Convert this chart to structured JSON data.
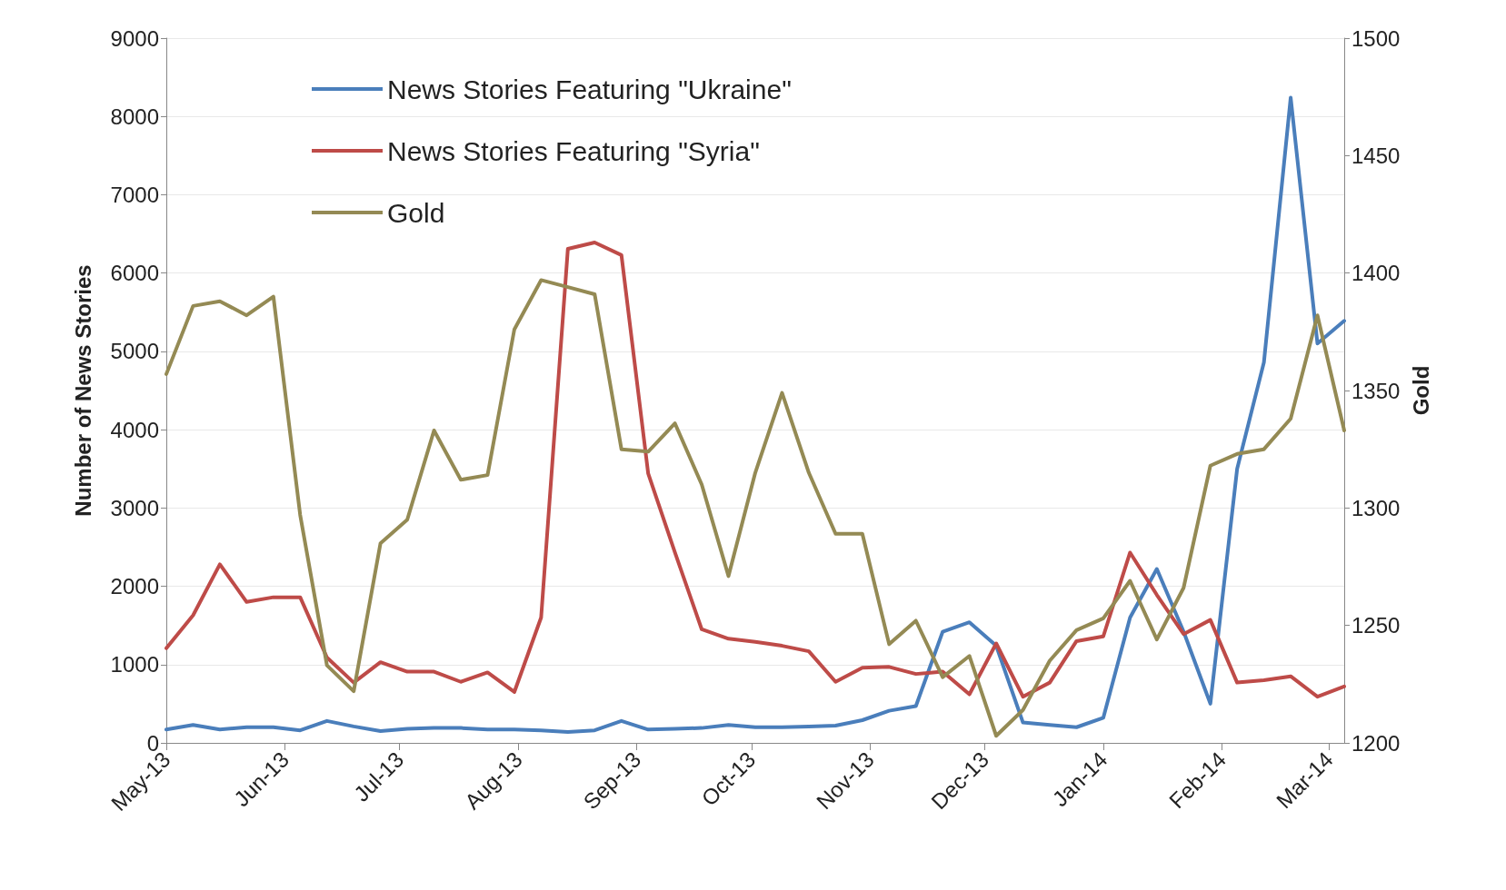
{
  "chart_data": {
    "type": "line",
    "x": [
      "2013-05-01",
      "2013-05-08",
      "2013-05-15",
      "2013-05-22",
      "2013-05-29",
      "2013-06-05",
      "2013-06-12",
      "2013-06-19",
      "2013-06-26",
      "2013-07-03",
      "2013-07-10",
      "2013-07-17",
      "2013-07-24",
      "2013-07-31",
      "2013-08-07",
      "2013-08-14",
      "2013-08-21",
      "2013-08-28",
      "2013-09-04",
      "2013-09-11",
      "2013-09-18",
      "2013-09-25",
      "2013-10-02",
      "2013-10-09",
      "2013-10-16",
      "2013-10-23",
      "2013-10-30",
      "2013-11-06",
      "2013-11-13",
      "2013-11-20",
      "2013-11-27",
      "2013-12-04",
      "2013-12-11",
      "2013-12-18",
      "2013-12-25",
      "2014-01-01",
      "2014-01-08",
      "2014-01-15",
      "2014-01-22",
      "2014-01-29",
      "2014-02-05",
      "2014-02-12",
      "2014-02-19",
      "2014-02-26",
      "2014-03-05"
    ],
    "series": [
      {
        "name": "News Stories Featuring \"Ukraine\"",
        "color": "#4a7ebb",
        "values": [
          170,
          230,
          170,
          200,
          200,
          160,
          280,
          210,
          150,
          180,
          190,
          190,
          170,
          170,
          160,
          140,
          160,
          280,
          170,
          180,
          190,
          230,
          200,
          200,
          210,
          220,
          290,
          410,
          470,
          1420,
          1540,
          1240,
          260,
          230,
          200,
          320,
          1600,
          2220,
          1420,
          500,
          3500,
          4860,
          8240,
          5100,
          5390
        ]
      },
      {
        "name": "News Stories Featuring \"Syria\"",
        "color": "#be4b48",
        "values": [
          1210,
          1630,
          2280,
          1800,
          1860,
          1860,
          1090,
          770,
          1030,
          910,
          910,
          780,
          900,
          650,
          1600,
          6310,
          6390,
          6230,
          3440,
          2430,
          1450,
          1330,
          1290,
          1240,
          1170,
          780,
          960,
          970,
          880,
          910,
          620,
          1270,
          590,
          770,
          1300,
          1360,
          2430,
          1890,
          1390,
          1570,
          770,
          800,
          850,
          590,
          720
        ]
      },
      {
        "name": "Gold",
        "color": "#948a54",
        "axis": "y2",
        "values": [
          1357,
          1386,
          1388,
          1382,
          1390,
          1297,
          1233,
          1222,
          1285,
          1295,
          1333,
          1312,
          1314,
          1376,
          1397,
          1394,
          1391,
          1325,
          1324,
          1336,
          1310,
          1271,
          1315,
          1349,
          1315,
          1289,
          1289,
          1242,
          1252,
          1228,
          1237,
          1203,
          1214,
          1235,
          1248,
          1253,
          1269,
          1244,
          1266,
          1318,
          1323,
          1325,
          1338,
          1382,
          1333
        ]
      }
    ],
    "ylabel": "Number of News Stories",
    "y2label": "Gold",
    "xlim": [
      "2013-05-01",
      "2014-03-05"
    ],
    "xticks": [
      {
        "value": "2013-05-01",
        "label": "May-13"
      },
      {
        "value": "2013-06-01",
        "label": "Jun-13"
      },
      {
        "value": "2013-07-01",
        "label": "Jul-13"
      },
      {
        "value": "2013-08-01",
        "label": "Aug-13"
      },
      {
        "value": "2013-09-01",
        "label": "Sep-13"
      },
      {
        "value": "2013-10-01",
        "label": "Oct-13"
      },
      {
        "value": "2013-11-01",
        "label": "Nov-13"
      },
      {
        "value": "2013-12-01",
        "label": "Dec-13"
      },
      {
        "value": "2014-01-01",
        "label": "Jan-14"
      },
      {
        "value": "2014-02-01",
        "label": "Feb-14"
      },
      {
        "value": "2014-03-01",
        "label": "Mar-14"
      }
    ],
    "ylim": [
      0,
      9000
    ],
    "yticks": [
      0,
      1000,
      2000,
      3000,
      4000,
      5000,
      6000,
      7000,
      8000,
      9000
    ],
    "y2lim": [
      1200,
      1500
    ],
    "y2ticks": [
      1200,
      1250,
      1300,
      1350,
      1400,
      1450,
      1500
    ],
    "grid": "y",
    "legend": "top left",
    "marker": "none",
    "line_style": "solid"
  }
}
